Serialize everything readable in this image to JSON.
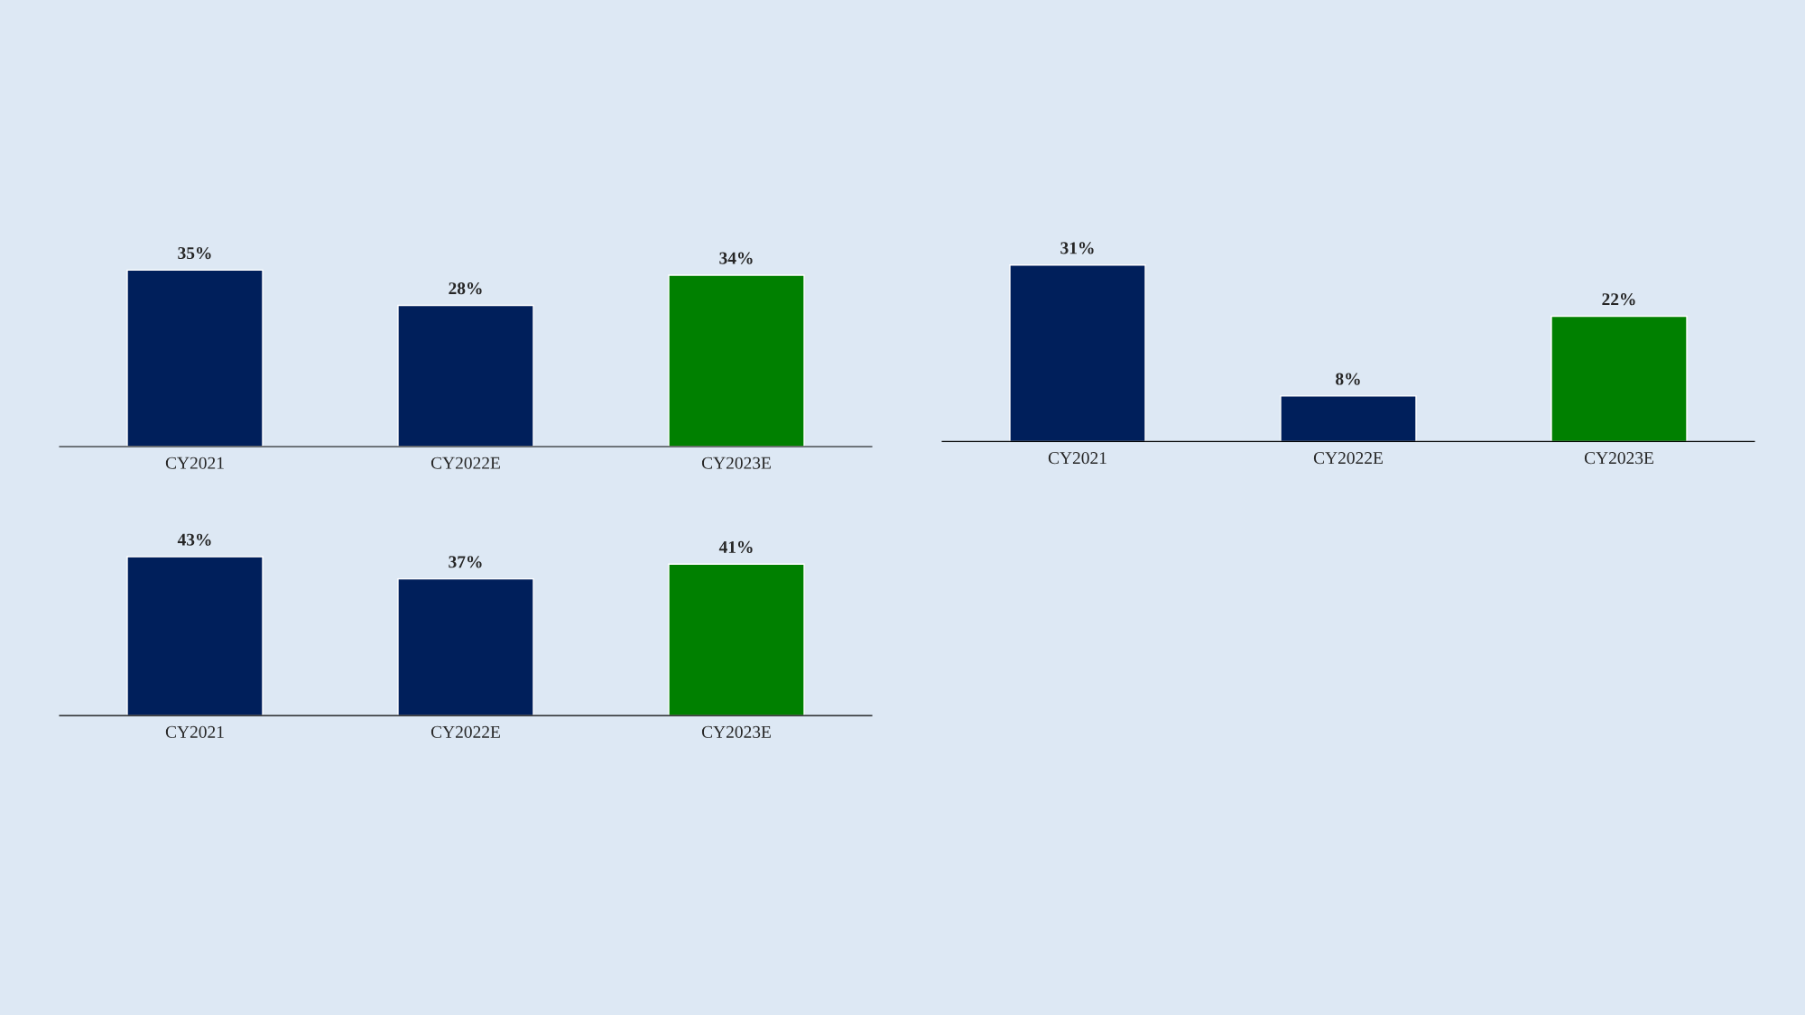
{
  "chart_data": [
    {
      "type": "bar",
      "categories": [
        "CY2021",
        "CY2022E",
        "CY2023E"
      ],
      "values": [
        35,
        28,
        34
      ],
      "colors": [
        "#001f5b",
        "#001f5b",
        "#008000"
      ],
      "value_labels": [
        "35%",
        "28%",
        "34%"
      ],
      "grid": false,
      "legend": false
    },
    {
      "type": "bar",
      "categories": [
        "CY2021",
        "CY2022E",
        "CY2023E"
      ],
      "values": [
        31,
        8,
        22
      ],
      "colors": [
        "#001f5b",
        "#001f5b",
        "#008000"
      ],
      "value_labels": [
        "31%",
        "8%",
        "22%"
      ],
      "grid": false,
      "legend": false
    },
    {
      "type": "bar",
      "categories": [
        "CY2021",
        "CY2022E",
        "CY2023E"
      ],
      "values": [
        43,
        37,
        41
      ],
      "colors": [
        "#001f5b",
        "#001f5b",
        "#008000"
      ],
      "value_labels": [
        "43%",
        "37%",
        "41%"
      ],
      "grid": false,
      "legend": false
    }
  ]
}
